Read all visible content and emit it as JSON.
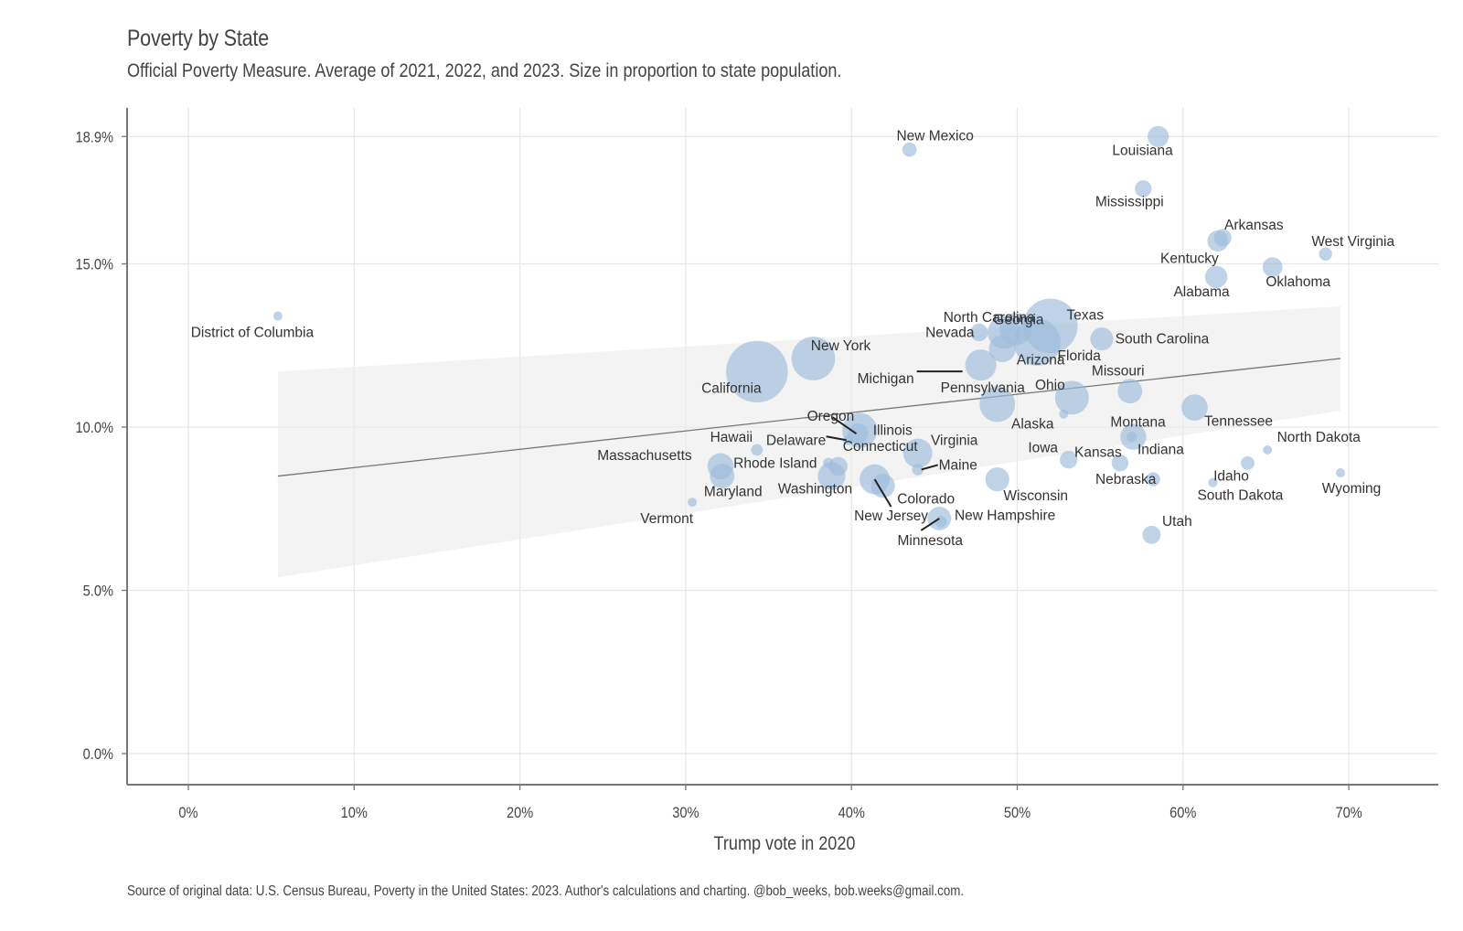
{
  "chart_data": {
    "type": "scatter",
    "title": "Poverty by State",
    "subtitle": "Official Poverty Measure.  Average of 2021, 2022, and 2023. Size in proportion to state population.",
    "caption": "Source of original data: U.S. Census Bureau, Poverty in the United States: 2023. Author's calculations and charting. @bob_weeks, bob.weeks@gmail.com.",
    "xlabel": "Trump vote in 2020",
    "ylabel": "",
    "xlim": [
      -3.5,
      73.5
    ],
    "ylim": [
      -0.9,
      19.7
    ],
    "x_ticks": [
      0,
      10,
      20,
      30,
      40,
      50,
      60,
      70
    ],
    "x_tick_labels": [
      "0%",
      "10%",
      "20%",
      "30%",
      "40%",
      "50%",
      "60%",
      "70%"
    ],
    "y_ticks": [
      0,
      5,
      10,
      15,
      18.9
    ],
    "y_tick_labels": [
      "0.0%",
      "5.0%",
      "10.0%",
      "15.0%",
      "18.9%"
    ],
    "grid": true,
    "bubble_color": "#9dbcdc",
    "size_meaning": "state population (millions)",
    "trend": {
      "type": "linear",
      "x_range": [
        5.4,
        69.5
      ],
      "y_at_start": 8.5,
      "y_at_end": 12.1,
      "ci_low_start": 5.4,
      "ci_high_start": 11.7,
      "ci_low_end": 10.5,
      "ci_high_end": 13.7
    },
    "points": [
      {
        "state": "District of Columbia",
        "x": 5.4,
        "y": 13.4,
        "pop": 0.7
      },
      {
        "state": "Vermont",
        "x": 30.4,
        "y": 7.7,
        "pop": 0.6
      },
      {
        "state": "Massachusetts",
        "x": 32.1,
        "y": 8.8,
        "pop": 7.0
      },
      {
        "state": "Maryland",
        "x": 32.2,
        "y": 8.5,
        "pop": 6.2
      },
      {
        "state": "Hawaii",
        "x": 34.3,
        "y": 9.3,
        "pop": 1.4
      },
      {
        "state": "California",
        "x": 34.3,
        "y": 11.7,
        "pop": 39.0
      },
      {
        "state": "New York",
        "x": 37.7,
        "y": 12.1,
        "pop": 19.6
      },
      {
        "state": "Rhode Island",
        "x": 38.6,
        "y": 8.9,
        "pop": 1.1
      },
      {
        "state": "Washington",
        "x": 38.8,
        "y": 8.5,
        "pop": 7.8
      },
      {
        "state": "Connecticut",
        "x": 39.2,
        "y": 8.8,
        "pop": 3.6
      },
      {
        "state": "Delaware",
        "x": 39.8,
        "y": 9.6,
        "pop": 1.0
      },
      {
        "state": "Illinois",
        "x": 40.5,
        "y": 9.9,
        "pop": 12.5
      },
      {
        "state": "Oregon",
        "x": 40.4,
        "y": 9.8,
        "pop": 4.2
      },
      {
        "state": "New Jersey",
        "x": 41.4,
        "y": 8.4,
        "pop": 9.3
      },
      {
        "state": "Colorado",
        "x": 41.9,
        "y": 8.2,
        "pop": 5.9
      },
      {
        "state": "New Mexico",
        "x": 43.5,
        "y": 18.5,
        "pop": 2.1
      },
      {
        "state": "Maine",
        "x": 44.0,
        "y": 8.7,
        "pop": 1.4
      },
      {
        "state": "Virginia",
        "x": 44.0,
        "y": 9.2,
        "pop": 8.7
      },
      {
        "state": "Minnesota",
        "x": 45.3,
        "y": 7.2,
        "pop": 5.7
      },
      {
        "state": "New Hampshire",
        "x": 45.4,
        "y": 7.1,
        "pop": 1.4
      },
      {
        "state": "Michigan",
        "x": 47.8,
        "y": 11.9,
        "pop": 10.0
      },
      {
        "state": "Nevada",
        "x": 47.7,
        "y": 12.9,
        "pop": 3.2
      },
      {
        "state": "Pennsylvania",
        "x": 48.8,
        "y": 10.7,
        "pop": 13.0
      },
      {
        "state": "Wisconsin",
        "x": 48.8,
        "y": 8.4,
        "pop": 5.9
      },
      {
        "state": "Arizona",
        "x": 49.1,
        "y": 12.4,
        "pop": 7.4
      },
      {
        "state": "Georgia",
        "x": 49.2,
        "y": 12.9,
        "pop": 11.0
      },
      {
        "state": "North Carolina",
        "x": 49.9,
        "y": 13.0,
        "pop": 10.7
      },
      {
        "state": "Florida",
        "x": 51.2,
        "y": 12.6,
        "pop": 22.6
      },
      {
        "state": "Texas",
        "x": 52.0,
        "y": 13.1,
        "pop": 30.5
      },
      {
        "state": "Ohio",
        "x": 53.3,
        "y": 10.9,
        "pop": 11.8
      },
      {
        "state": "Alaska",
        "x": 52.8,
        "y": 10.4,
        "pop": 0.7
      },
      {
        "state": "Iowa",
        "x": 53.1,
        "y": 9.0,
        "pop": 3.2
      },
      {
        "state": "South Carolina",
        "x": 55.1,
        "y": 12.7,
        "pop": 5.4
      },
      {
        "state": "Kansas",
        "x": 56.2,
        "y": 8.9,
        "pop": 2.9
      },
      {
        "state": "Missouri",
        "x": 56.8,
        "y": 11.1,
        "pop": 6.2
      },
      {
        "state": "Montana",
        "x": 56.9,
        "y": 9.7,
        "pop": 1.1
      },
      {
        "state": "Indiana",
        "x": 57.0,
        "y": 9.7,
        "pop": 6.9
      },
      {
        "state": "Mississippi",
        "x": 57.6,
        "y": 17.3,
        "pop": 2.9
      },
      {
        "state": "Utah",
        "x": 58.1,
        "y": 6.7,
        "pop": 3.4
      },
      {
        "state": "Nebraska",
        "x": 58.2,
        "y": 8.4,
        "pop": 2.0
      },
      {
        "state": "Louisiana",
        "x": 58.5,
        "y": 18.9,
        "pop": 4.6
      },
      {
        "state": "Tennessee",
        "x": 60.7,
        "y": 10.6,
        "pop": 7.1
      },
      {
        "state": "South Dakota",
        "x": 61.8,
        "y": 8.3,
        "pop": 0.9
      },
      {
        "state": "Alabama",
        "x": 62.0,
        "y": 14.6,
        "pop": 5.1
      },
      {
        "state": "Kentucky",
        "x": 62.1,
        "y": 15.7,
        "pop": 4.5
      },
      {
        "state": "Arkansas",
        "x": 62.4,
        "y": 15.8,
        "pop": 3.1
      },
      {
        "state": "Idaho",
        "x": 63.9,
        "y": 8.9,
        "pop": 1.9
      },
      {
        "state": "North Dakota",
        "x": 65.1,
        "y": 9.3,
        "pop": 0.8
      },
      {
        "state": "Oklahoma",
        "x": 65.4,
        "y": 14.9,
        "pop": 4.0
      },
      {
        "state": "West Virginia",
        "x": 68.6,
        "y": 15.3,
        "pop": 1.8
      },
      {
        "state": "Wyoming",
        "x": 69.5,
        "y": 8.6,
        "pop": 0.6
      }
    ]
  }
}
